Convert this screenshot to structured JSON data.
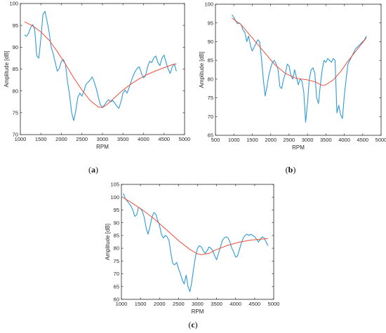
{
  "colors": {
    "measured": "#2e9bd6",
    "fit": "#f04e3b",
    "axis": "#262626"
  },
  "chart_data": [
    {
      "type": "line",
      "panel_label": "a",
      "xlabel": "RPM",
      "ylabel": "Amplitude [dB]",
      "xlim": [
        1000,
        5000
      ],
      "ylim": [
        70,
        100
      ],
      "xticks": [
        "1000",
        "1500",
        "2000",
        "2500",
        "3000",
        "3500",
        "4000",
        "4500",
        "5000"
      ],
      "yticks": [
        "70",
        "75",
        "80",
        "85",
        "90",
        "95",
        "100"
      ],
      "series": [
        {
          "role": "measured",
          "x": [
            1100,
            1150,
            1200,
            1250,
            1300,
            1350,
            1400,
            1450,
            1500,
            1550,
            1600,
            1650,
            1700,
            1750,
            1800,
            1850,
            1900,
            1950,
            2000,
            2050,
            2100,
            2150,
            2200,
            2250,
            2300,
            2350,
            2400,
            2450,
            2500,
            2550,
            2600,
            2650,
            2700,
            2750,
            2800,
            2850,
            2900,
            2950,
            3000,
            3050,
            3100,
            3150,
            3200,
            3250,
            3300,
            3350,
            3400,
            3450,
            3500,
            3550,
            3600,
            3650,
            3700,
            3750,
            3800,
            3850,
            3900,
            3950,
            4000,
            4050,
            4100,
            4150,
            4200,
            4250,
            4300,
            4350,
            4400,
            4450,
            4500,
            4550,
            4600,
            4650,
            4700,
            4750,
            4800
          ],
          "y": [
            92.8,
            92.5,
            93.2,
            94.5,
            95.2,
            94.0,
            88.0,
            87.5,
            92.0,
            97.5,
            98.2,
            96.0,
            93.5,
            90.0,
            88.5,
            86.5,
            84.5,
            85.2,
            86.8,
            87.2,
            86.0,
            82.0,
            79.0,
            75.0,
            73.2,
            75.5,
            78.5,
            79.5,
            78.8,
            80.0,
            81.5,
            82.0,
            82.5,
            83.2,
            82.0,
            80.5,
            78.5,
            76.8,
            76.2,
            76.8,
            77.5,
            78.0,
            77.5,
            77.8,
            77.2,
            76.5,
            76.0,
            77.5,
            79.5,
            80.2,
            79.5,
            80.8,
            82.2,
            83.5,
            84.5,
            85.2,
            85.5,
            84.0,
            83.0,
            83.5,
            85.5,
            86.8,
            86.5,
            87.5,
            88.0,
            86.5,
            85.8,
            87.5,
            88.2,
            86.5,
            85.0,
            84.0,
            85.5,
            86.2,
            84.5
          ]
        },
        {
          "role": "fit",
          "x": [
            1100,
            1300,
            1500,
            1700,
            1900,
            2100,
            2300,
            2500,
            2700,
            2900,
            3000,
            3100,
            3300,
            3500,
            3700,
            3900,
            4100,
            4300,
            4500,
            4700,
            4800
          ],
          "y": [
            95.8,
            94.9,
            93.5,
            91.6,
            89.0,
            86.1,
            83.0,
            80.2,
            77.8,
            76.3,
            76.2,
            76.8,
            78.5,
            80.2,
            81.6,
            82.8,
            83.8,
            84.6,
            85.3,
            86.0,
            86.2
          ]
        }
      ]
    },
    {
      "type": "line",
      "panel_label": "b",
      "xlabel": "RPM",
      "ylabel": "Amplitude [dB]",
      "xlim": [
        500,
        5000
      ],
      "ylim": [
        65,
        100
      ],
      "xticks": [
        "500",
        "1000",
        "1500",
        "2000",
        "2500",
        "3000",
        "3500",
        "4000",
        "4500",
        "5000"
      ],
      "yticks": [
        "65",
        "70",
        "75",
        "80",
        "85",
        "90",
        "95",
        "100"
      ],
      "series": [
        {
          "role": "measured",
          "x": [
            950,
            1000,
            1050,
            1100,
            1150,
            1200,
            1250,
            1300,
            1350,
            1400,
            1450,
            1500,
            1550,
            1600,
            1650,
            1700,
            1750,
            1800,
            1850,
            1900,
            1950,
            2000,
            2050,
            2100,
            2150,
            2200,
            2250,
            2300,
            2350,
            2400,
            2450,
            2500,
            2550,
            2600,
            2650,
            2700,
            2750,
            2800,
            2850,
            2900,
            2950,
            3000,
            3050,
            3100,
            3150,
            3200,
            3250,
            3300,
            3350,
            3400,
            3450,
            3500,
            3550,
            3600,
            3650,
            3700,
            3750,
            3800,
            3850,
            3900,
            3950,
            4000,
            4050,
            4100,
            4150,
            4200,
            4250,
            4300,
            4350,
            4400,
            4450,
            4500,
            4550,
            4600
          ],
          "y": [
            97.2,
            96.5,
            95.5,
            94.8,
            95.0,
            94.5,
            93.0,
            92.5,
            90.0,
            91.5,
            89.0,
            87.5,
            88.5,
            89.5,
            90.5,
            90.0,
            85.5,
            80.0,
            75.5,
            78.0,
            81.0,
            83.0,
            84.5,
            85.0,
            84.0,
            82.5,
            78.0,
            77.5,
            80.0,
            81.5,
            84.0,
            83.5,
            81.0,
            80.0,
            82.5,
            80.5,
            78.5,
            80.0,
            79.5,
            76.5,
            68.5,
            73.5,
            80.0,
            82.5,
            83.0,
            81.5,
            75.0,
            73.5,
            78.5,
            82.5,
            85.0,
            84.5,
            85.5,
            85.0,
            84.5,
            85.5,
            85.0,
            71.0,
            73.0,
            70.5,
            69.5,
            75.5,
            80.0,
            84.0,
            85.0,
            86.0,
            87.0,
            88.0,
            88.5,
            89.0,
            89.5,
            90.0,
            90.5,
            91.5
          ]
        },
        {
          "role": "fit",
          "x": [
            950,
            1200,
            1500,
            1800,
            2100,
            2400,
            2700,
            3000,
            3200,
            3400,
            3500,
            3700,
            3900,
            4100,
            4300,
            4600
          ],
          "y": [
            96.3,
            94.5,
            91.0,
            87.5,
            84.0,
            81.5,
            80.2,
            79.8,
            79.3,
            78.3,
            78.5,
            79.8,
            82.0,
            84.8,
            87.3,
            91.0
          ]
        }
      ]
    },
    {
      "type": "line",
      "panel_label": "c",
      "xlabel": "RPM",
      "ylabel": "Amplitude [dB]",
      "xlim": [
        1000,
        5000
      ],
      "ylim": [
        60,
        105
      ],
      "xticks": [
        "1000",
        "1500",
        "2000",
        "2500",
        "3000",
        "3500",
        "4000",
        "4500",
        "5000"
      ],
      "yticks": [
        "60",
        "65",
        "70",
        "75",
        "80",
        "85",
        "90",
        "95",
        "100",
        "105"
      ],
      "series": [
        {
          "role": "measured",
          "x": [
            1050,
            1100,
            1150,
            1200,
            1250,
            1300,
            1350,
            1400,
            1450,
            1500,
            1550,
            1600,
            1650,
            1700,
            1750,
            1800,
            1850,
            1900,
            1950,
            2000,
            2050,
            2100,
            2150,
            2200,
            2250,
            2300,
            2350,
            2400,
            2450,
            2500,
            2550,
            2600,
            2650,
            2700,
            2750,
            2800,
            2850,
            2900,
            2950,
            3000,
            3050,
            3100,
            3150,
            3200,
            3250,
            3300,
            3350,
            3400,
            3450,
            3500,
            3550,
            3600,
            3650,
            3700,
            3750,
            3800,
            3850,
            3900,
            3950,
            4000,
            4050,
            4100,
            4150,
            4200,
            4250,
            4300,
            4350,
            4400,
            4450,
            4500,
            4550,
            4600,
            4650,
            4700,
            4750,
            4800,
            4850
          ],
          "y": [
            101.5,
            99.5,
            98.5,
            97.5,
            96.5,
            95.0,
            92.5,
            93.0,
            96.0,
            95.5,
            94.5,
            92.0,
            88.0,
            85.5,
            88.5,
            92.0,
            94.0,
            93.5,
            91.0,
            89.0,
            85.5,
            84.0,
            85.0,
            84.5,
            83.0,
            78.0,
            74.0,
            73.5,
            74.5,
            72.0,
            70.0,
            67.5,
            66.0,
            69.5,
            65.0,
            63.0,
            67.0,
            72.5,
            77.0,
            80.0,
            81.0,
            80.5,
            79.0,
            78.0,
            79.0,
            80.5,
            80.0,
            79.0,
            77.0,
            75.5,
            78.0,
            80.5,
            83.0,
            84.0,
            84.5,
            84.0,
            82.5,
            80.0,
            78.5,
            76.5,
            77.0,
            79.5,
            82.0,
            84.0,
            85.0,
            85.5,
            85.0,
            85.5,
            85.0,
            84.5,
            83.5,
            82.5,
            83.5,
            84.5,
            84.0,
            82.5,
            81.0
          ]
        },
        {
          "role": "fit",
          "x": [
            1050,
            1300,
            1600,
            1900,
            2200,
            2500,
            2800,
            3000,
            3100,
            3300,
            3500,
            3800,
            4100,
            4400,
            4700,
            4850
          ],
          "y": [
            99.8,
            97.5,
            94.5,
            91.0,
            87.0,
            83.0,
            79.5,
            77.8,
            77.5,
            78.0,
            79.5,
            81.2,
            82.4,
            83.2,
            83.6,
            83.8
          ]
        }
      ]
    }
  ]
}
